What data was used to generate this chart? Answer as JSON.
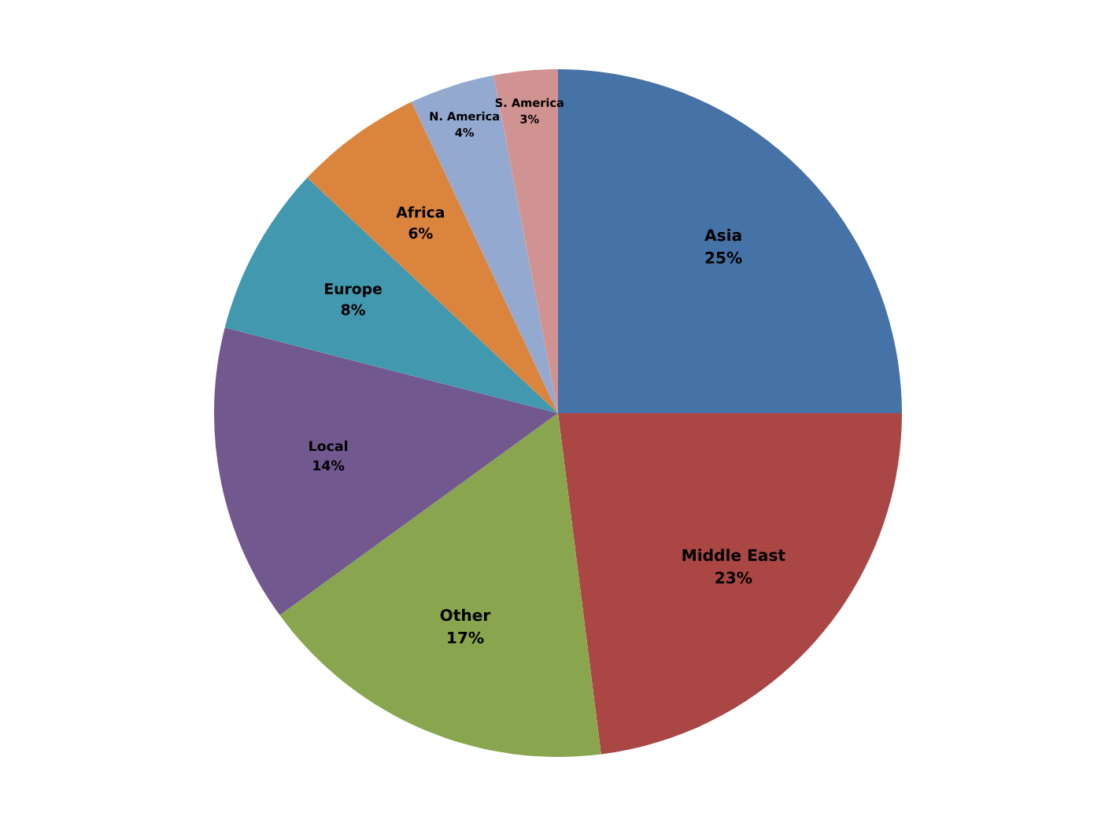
{
  "chart_data": {
    "type": "pie",
    "categories": [
      "Asia",
      "Middle East",
      "Other",
      "Local",
      "Europe",
      "Africa",
      "N. America",
      "S. America"
    ],
    "values": [
      25,
      23,
      17,
      14,
      8,
      6,
      4,
      3
    ],
    "value_labels": [
      "25%",
      "23%",
      "17%",
      "14%",
      "8%",
      "6%",
      "4%",
      "3%"
    ],
    "colors": [
      "#4673a7",
      "#aa4644",
      "#89a54e",
      "#71588f",
      "#4198af",
      "#db843d",
      "#93a9cf",
      "#d19392"
    ]
  }
}
